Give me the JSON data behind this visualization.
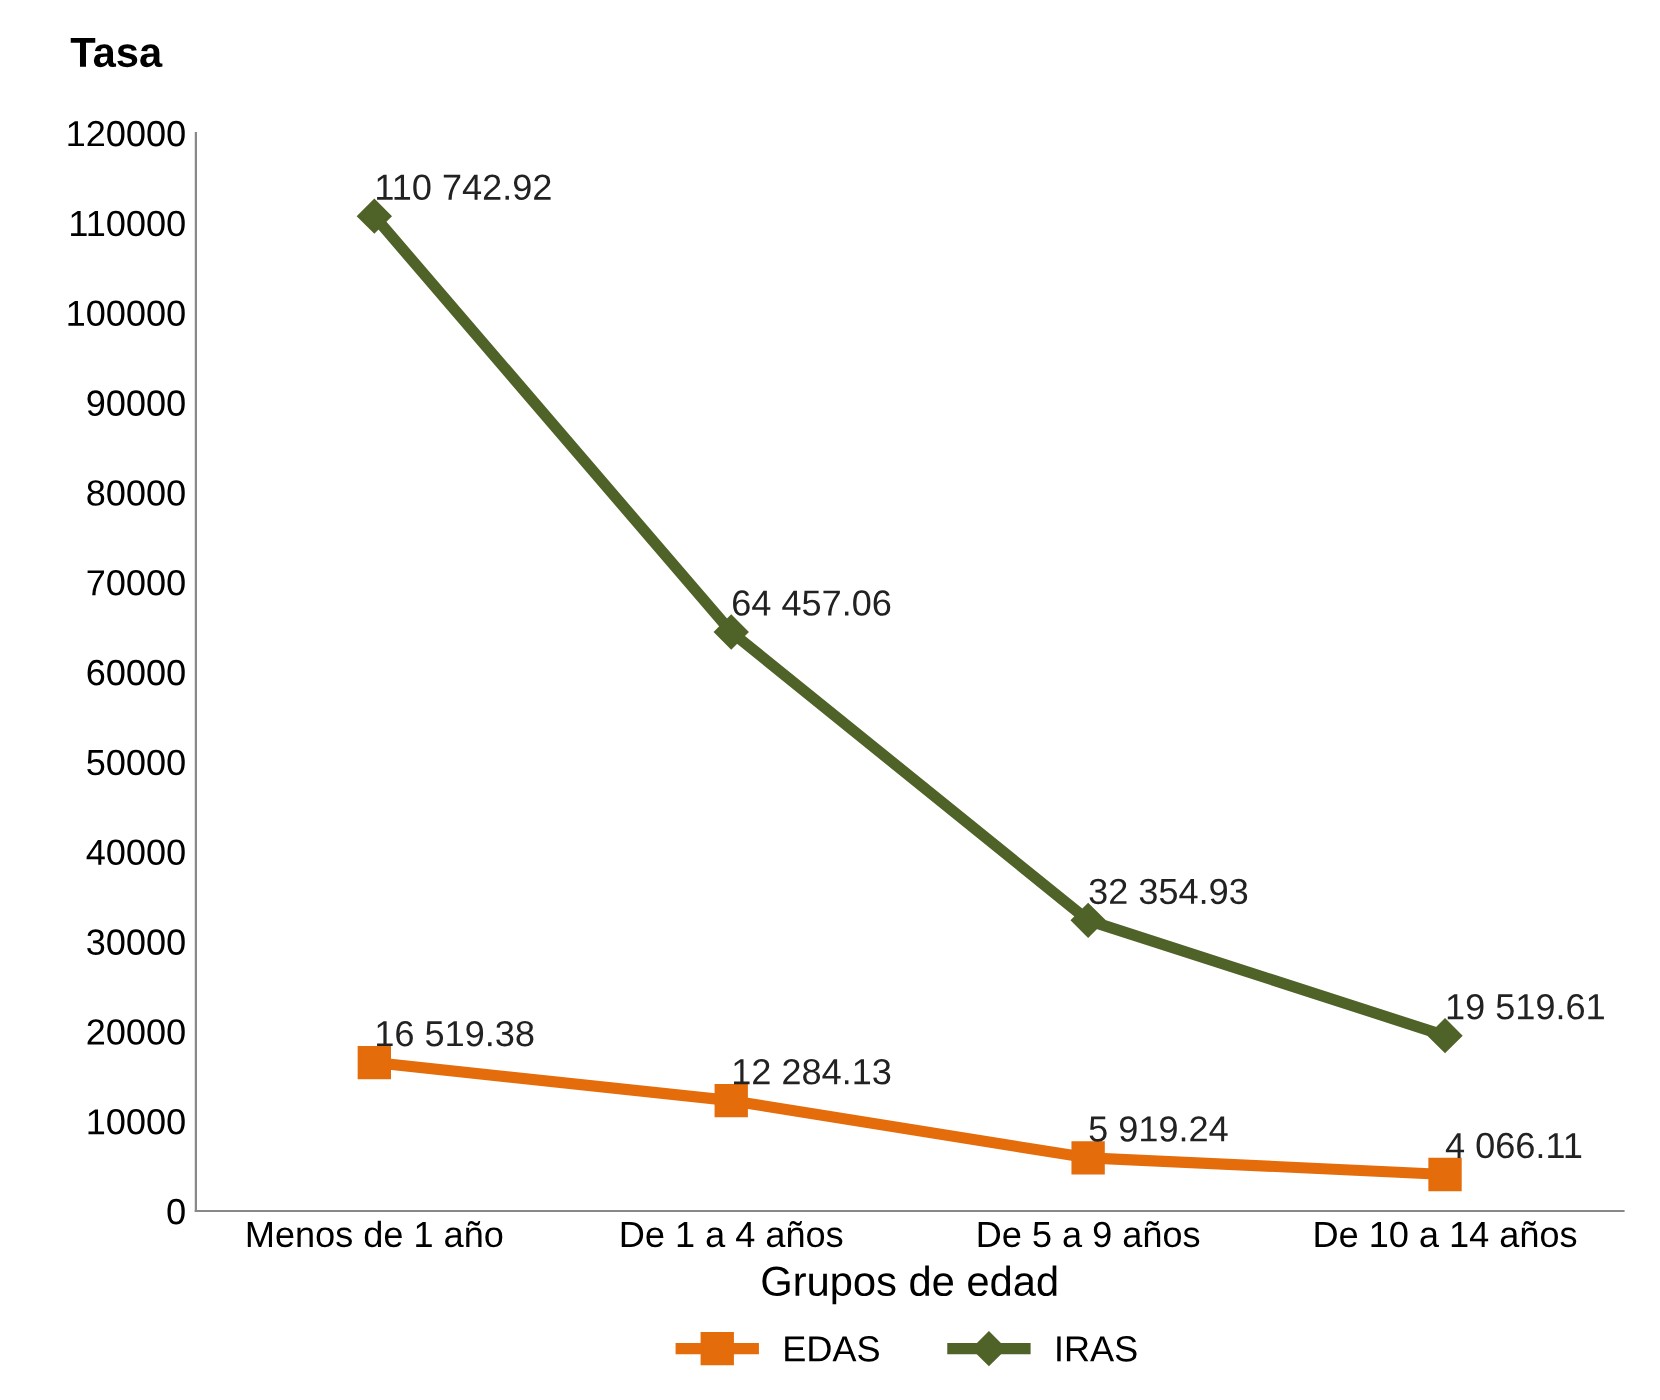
{
  "chart_data": {
    "type": "line",
    "ylabel": "Tasa",
    "xlabel": "Grupos de edad",
    "categories": [
      "Menos de 1 año",
      "De 1 a 4 años",
      "De 5 a 9 años",
      "De 10 a 14 años"
    ],
    "series": [
      {
        "name": "EDAS",
        "color": "#e46c0a",
        "marker": "square",
        "values": [
          16519.38,
          12284.13,
          5919.24,
          4066.11
        ],
        "value_labels": [
          "16 519.38",
          "12 284.13",
          "5 919.24",
          "4 066.11"
        ]
      },
      {
        "name": "IRAS",
        "color": "#4f6228",
        "marker": "diamond",
        "values": [
          110742.92,
          64457.06,
          32354.93,
          19519.61
        ],
        "value_labels": [
          "110 742.92",
          "64 457.06",
          "32 354.93",
          "19 519.61"
        ]
      }
    ],
    "ylim": [
      0,
      120000
    ],
    "yticks": [
      0,
      10000,
      20000,
      30000,
      40000,
      50000,
      60000,
      70000,
      80000,
      90000,
      100000,
      110000,
      120000
    ],
    "grid": false,
    "legend": "bottom",
    "line_style": "solid"
  }
}
